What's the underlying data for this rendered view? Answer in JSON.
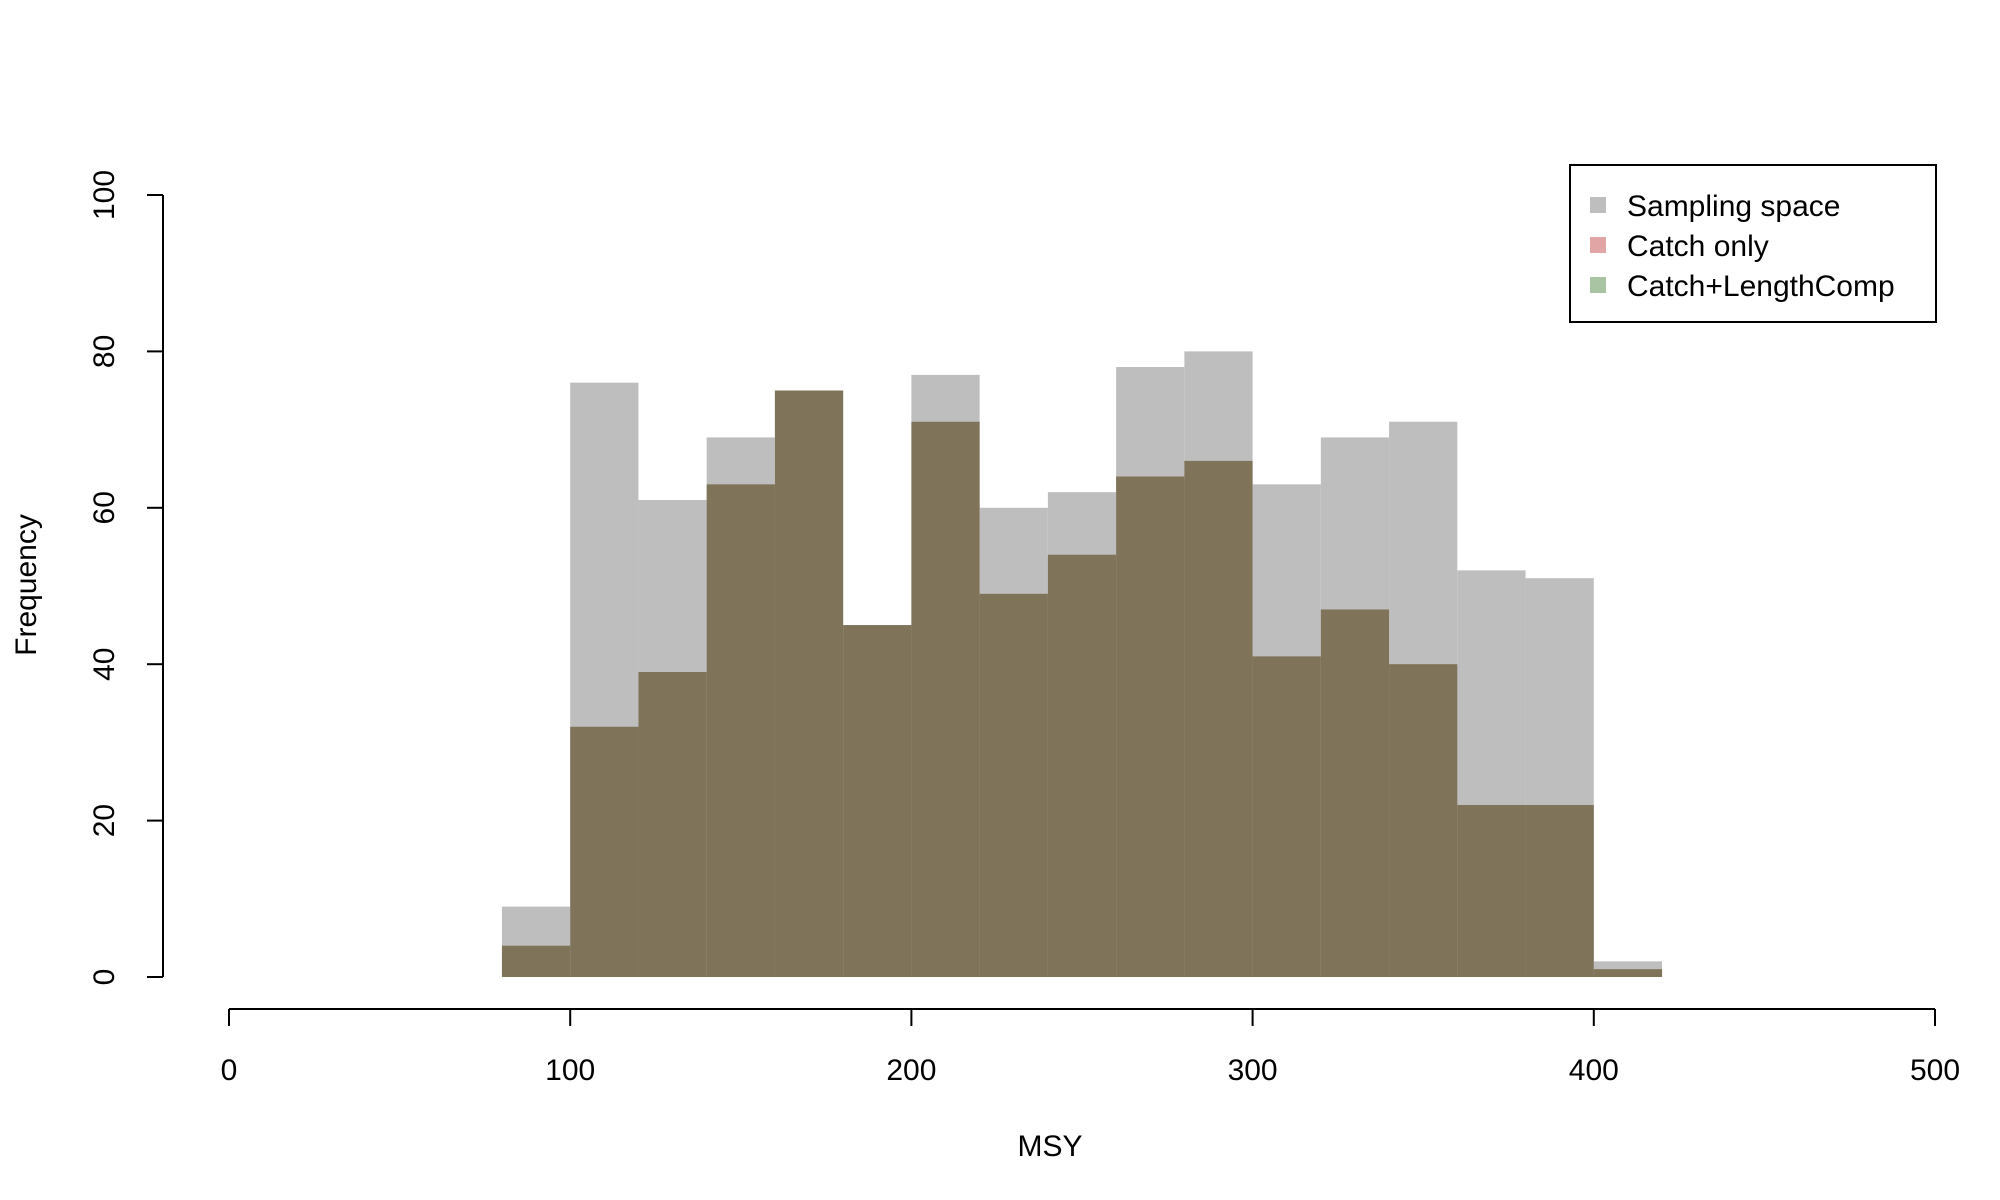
{
  "chart_data": {
    "type": "bar",
    "title": "",
    "xlabel": "MSY",
    "ylabel": "Frequency",
    "xlim": [
      0,
      500
    ],
    "ylim": [
      0,
      100
    ],
    "xticks": [
      "0",
      "100",
      "200",
      "300",
      "400",
      "500"
    ],
    "yticks": [
      "0",
      "20",
      "40",
      "60",
      "80",
      "100"
    ],
    "bin_width": 20,
    "bin_starts": [
      80,
      100,
      120,
      140,
      160,
      180,
      200,
      220,
      240,
      260,
      280,
      300,
      320,
      340,
      360,
      380,
      400
    ],
    "legend_position": "top-right",
    "grid": false,
    "series": [
      {
        "name": "Sampling space",
        "color": "#bebebe",
        "values": [
          9,
          76,
          61,
          69,
          75,
          45,
          77,
          60,
          62,
          78,
          80,
          63,
          69,
          71,
          52,
          51,
          2
        ]
      },
      {
        "name": "Catch only",
        "color": "#e2a5a5",
        "values": [
          4,
          32,
          39,
          63,
          75,
          45,
          71,
          49,
          54,
          64,
          66,
          41,
          47,
          40,
          22,
          22,
          1
        ]
      },
      {
        "name": "Catch+LengthComp",
        "color": "#a9c4a3",
        "values": [
          4,
          32,
          39,
          63,
          75,
          45,
          71,
          49,
          54,
          64,
          66,
          41,
          47,
          40,
          22,
          22,
          1
        ]
      }
    ],
    "overlap_color": "#7f7459"
  }
}
